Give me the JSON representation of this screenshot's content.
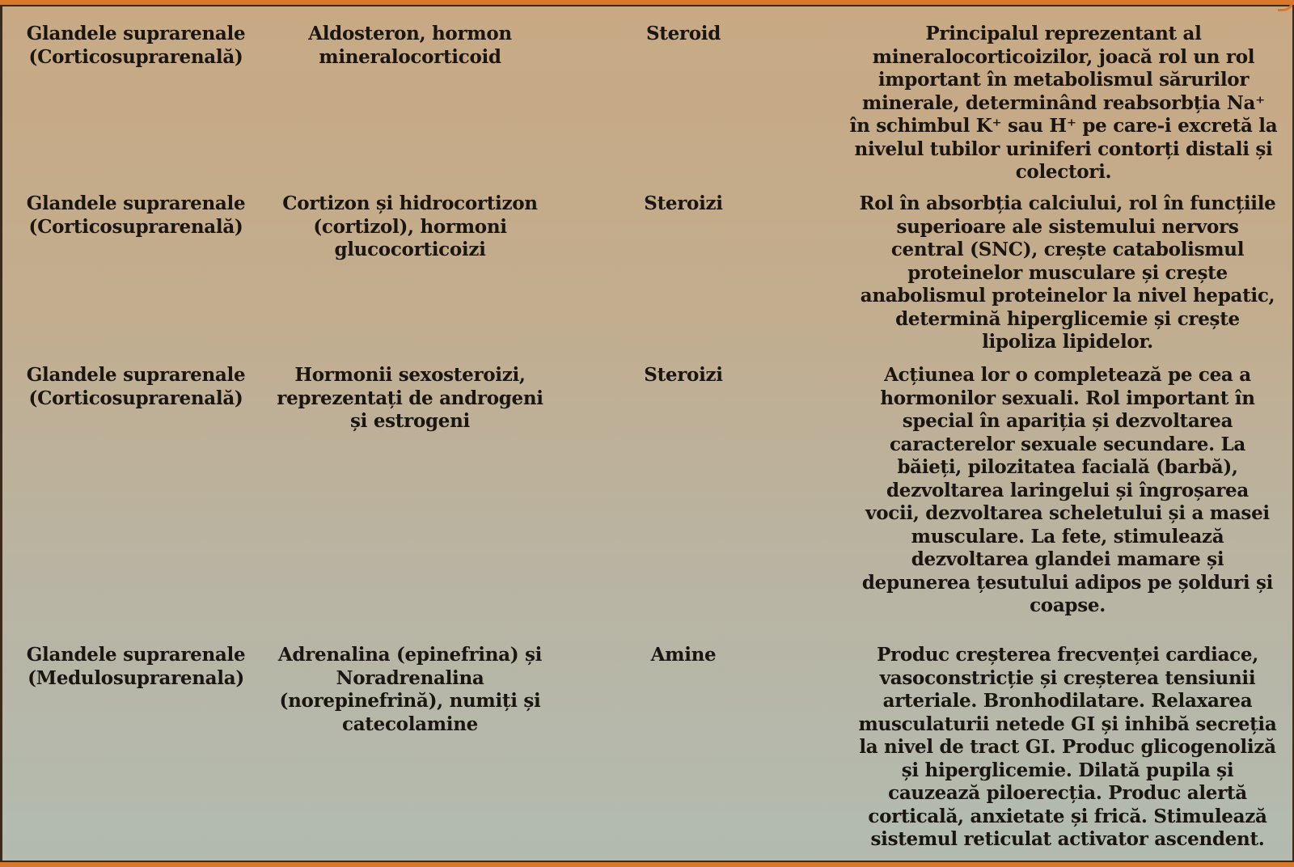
{
  "rows": [
    {
      "gland": "Glandele suprarenale\n(Corticosuprarenală)",
      "hormone": "Aldosteron, hormon\nmineralocorticoid",
      "type": "Steroid",
      "role": "Principalul reprezentant al\nmineralocorticoizilor, joacă rol un rol\nimportant în metabolismul sărurilor\nminerale, determinând reabsorbția Na⁺\nîn schimbul K⁺ sau H⁺ pe care-i excretă la\nnivelul tubilor uriniferi contorți distali și\ncolectori."
    },
    {
      "gland": "Glandele suprarenale\n(Corticosuprarenală)",
      "hormone": "Cortizon și hidrocortizon\n(cortizol), hormoni\nglucocorticoizi",
      "type": "Steroizi",
      "role": "Rol în absorbția calciului, rol în funcțiile\nsuperioare ale sistemului nervors\ncentral (SNC), crește catabolismul\nproteinelor musculare și crește\nanabolismul proteinelor la nivel hepatic,\ndetermină hiperglicemie și crește\nlipoliza lipidelor."
    },
    {
      "gland": "Glandele suprarenale\n(Corticosuprarenală)",
      "hormone": "Hormonii sexosteroizi,\nreprezentați de androgeni\nși estrogeni",
      "type": "Steroizi",
      "role": "Acțiunea lor o completează pe cea a\nhormonilor sexuali. Rol important în\nspecial în apariția și dezvoltarea\ncaracterelor sexuale secundare. La\nbăieți, pilozitatea facială (barbă),\ndezvoltarea laringelui și îngroșarea\nvocii, dezvoltarea scheletului și a masei\nmusculare. La fete, stimulează\ndezvoltarea glandei mamare și\ndepunerea țesutului adipos pe șolduri și\ncoapse."
    },
    {
      "gland": "Glandele suprarenale\n(Medulosuprarenala)",
      "hormone": "Adrenalina (epinefrina) și\nNoradrenalina\n(norepinefrină), numiți și\ncatecolamine",
      "type": "Amine",
      "role": "Produc creșterea frecvenței cardiace,\nvasoconstricție și creșterea tensiunii\narteriale. Bronhodilatare. Relaxarea\nmusculaturii netede GI și inhibă secreția\nla nivel de tract GI. Produc glicogenoliză\nși hiperglicemie. Dilată pupila și\ncauzează piloerecția. Produc alertă\ncorticală, anxietate și frică. Stimulează\nsistemul reticulat activator ascendent."
    }
  ]
}
